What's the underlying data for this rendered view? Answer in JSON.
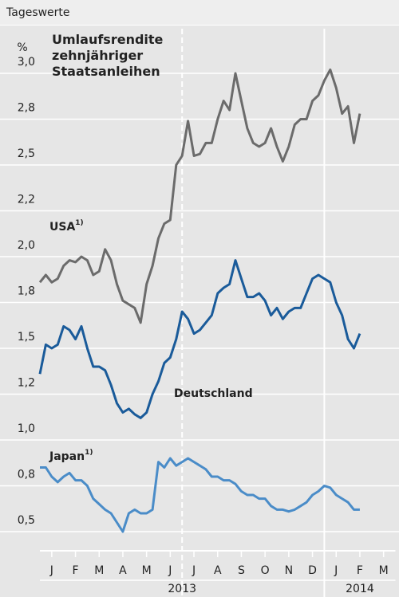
{
  "header": "Tageswerte",
  "chart_data": {
    "type": "line",
    "title": "Umlaufsrendite zehnjähriger Staatsanleihen",
    "y_unit": "%",
    "x": [
      0,
      0.25,
      0.5,
      0.75,
      1,
      1.25,
      1.5,
      1.75,
      2,
      2.25,
      2.5,
      2.75,
      3,
      3.25,
      3.5,
      3.75,
      4,
      4.25,
      4.5,
      4.75,
      5,
      5.25,
      5.5,
      5.75,
      6,
      6.25,
      6.5,
      6.75,
      7,
      7.25,
      7.5,
      7.75,
      8,
      8.25,
      8.5,
      8.75,
      9,
      9.25,
      9.5,
      9.75,
      10,
      10.25,
      10.5,
      10.75,
      11,
      11.25,
      11.5,
      11.75,
      12,
      12.25,
      12.5,
      12.75,
      13,
      13.25,
      13.5
    ],
    "series": [
      {
        "name": "USA",
        "note": "1)",
        "color": "#6b6b6b",
        "values": [
          1.86,
          1.9,
          1.86,
          1.88,
          1.95,
          1.98,
          1.97,
          2.0,
          1.98,
          1.9,
          1.92,
          2.04,
          1.98,
          1.85,
          1.76,
          1.74,
          1.72,
          1.64,
          1.85,
          1.95,
          2.1,
          2.18,
          2.2,
          2.5,
          2.55,
          2.74,
          2.55,
          2.56,
          2.62,
          2.62,
          2.75,
          2.85,
          2.8,
          3.0,
          2.85,
          2.7,
          2.62,
          2.6,
          2.62,
          2.7,
          2.6,
          2.52,
          2.6,
          2.72,
          2.75,
          2.75,
          2.85,
          2.88,
          2.96,
          3.02,
          2.92,
          2.78,
          2.82,
          2.62,
          2.78
        ]
      },
      {
        "name": "Deutschland",
        "color": "#1a5b9a",
        "values": [
          1.36,
          1.52,
          1.5,
          1.52,
          1.62,
          1.6,
          1.55,
          1.62,
          1.5,
          1.4,
          1.4,
          1.38,
          1.3,
          1.2,
          1.15,
          1.17,
          1.14,
          1.12,
          1.15,
          1.25,
          1.32,
          1.42,
          1.45,
          1.55,
          1.7,
          1.66,
          1.58,
          1.6,
          1.64,
          1.68,
          1.8,
          1.83,
          1.85,
          1.98,
          1.88,
          1.78,
          1.78,
          1.8,
          1.76,
          1.68,
          1.72,
          1.66,
          1.7,
          1.72,
          1.72,
          1.8,
          1.88,
          1.9,
          1.88,
          1.86,
          1.75,
          1.68,
          1.55,
          1.5,
          1.58
        ]
      },
      {
        "name": "Japan",
        "note": "1)",
        "color": "#4a8cc8",
        "values": [
          0.85,
          0.85,
          0.8,
          0.77,
          0.8,
          0.82,
          0.78,
          0.78,
          0.75,
          0.68,
          0.65,
          0.62,
          0.6,
          0.55,
          0.5,
          0.6,
          0.62,
          0.6,
          0.6,
          0.62,
          0.88,
          0.85,
          0.9,
          0.86,
          0.88,
          0.9,
          0.88,
          0.86,
          0.84,
          0.8,
          0.8,
          0.78,
          0.78,
          0.76,
          0.72,
          0.7,
          0.7,
          0.68,
          0.68,
          0.64,
          0.62,
          0.62,
          0.61,
          0.62,
          0.64,
          0.66,
          0.7,
          0.72,
          0.75,
          0.74,
          0.7,
          0.68,
          0.66,
          0.62,
          0.62
        ]
      }
    ],
    "xlim": [
      0,
      15
    ],
    "xticks": [
      {
        "value": 0.5,
        "label": "J"
      },
      {
        "value": 1.5,
        "label": "F"
      },
      {
        "value": 2.5,
        "label": "M"
      },
      {
        "value": 3.5,
        "label": "A"
      },
      {
        "value": 4.5,
        "label": "M"
      },
      {
        "value": 5.5,
        "label": "J"
      },
      {
        "value": 6.5,
        "label": "J"
      },
      {
        "value": 7.5,
        "label": "A"
      },
      {
        "value": 8.5,
        "label": "S"
      },
      {
        "value": 9.5,
        "label": "O"
      },
      {
        "value": 10.5,
        "label": "N"
      },
      {
        "value": 11.5,
        "label": "D"
      },
      {
        "value": 12.5,
        "label": "J"
      },
      {
        "value": 13.5,
        "label": "F"
      },
      {
        "value": 14.5,
        "label": "M"
      }
    ],
    "year_labels": [
      {
        "value": 6,
        "label": "2013"
      },
      {
        "value": 13.5,
        "label": "2014"
      }
    ],
    "vlines": [
      {
        "value": 6,
        "style": "dashed"
      },
      {
        "value": 12,
        "style": "solid"
      }
    ],
    "ylim": [
      0.4,
      3.2
    ],
    "yticks": [
      {
        "value": 0.5,
        "label": "0,5"
      },
      {
        "value": 0.75,
        "label": "0,8"
      },
      {
        "value": 1.0,
        "label": "1,0"
      },
      {
        "value": 1.25,
        "label": "1,2"
      },
      {
        "value": 1.5,
        "label": "1,5"
      },
      {
        "value": 1.75,
        "label": "1,8"
      },
      {
        "value": 2.0,
        "label": "2,0"
      },
      {
        "value": 2.25,
        "label": "2,2"
      },
      {
        "value": 2.5,
        "label": "2,5"
      },
      {
        "value": 2.75,
        "label": "2,8"
      },
      {
        "value": 3.0,
        "label": "3,0"
      }
    ],
    "grid": true
  }
}
